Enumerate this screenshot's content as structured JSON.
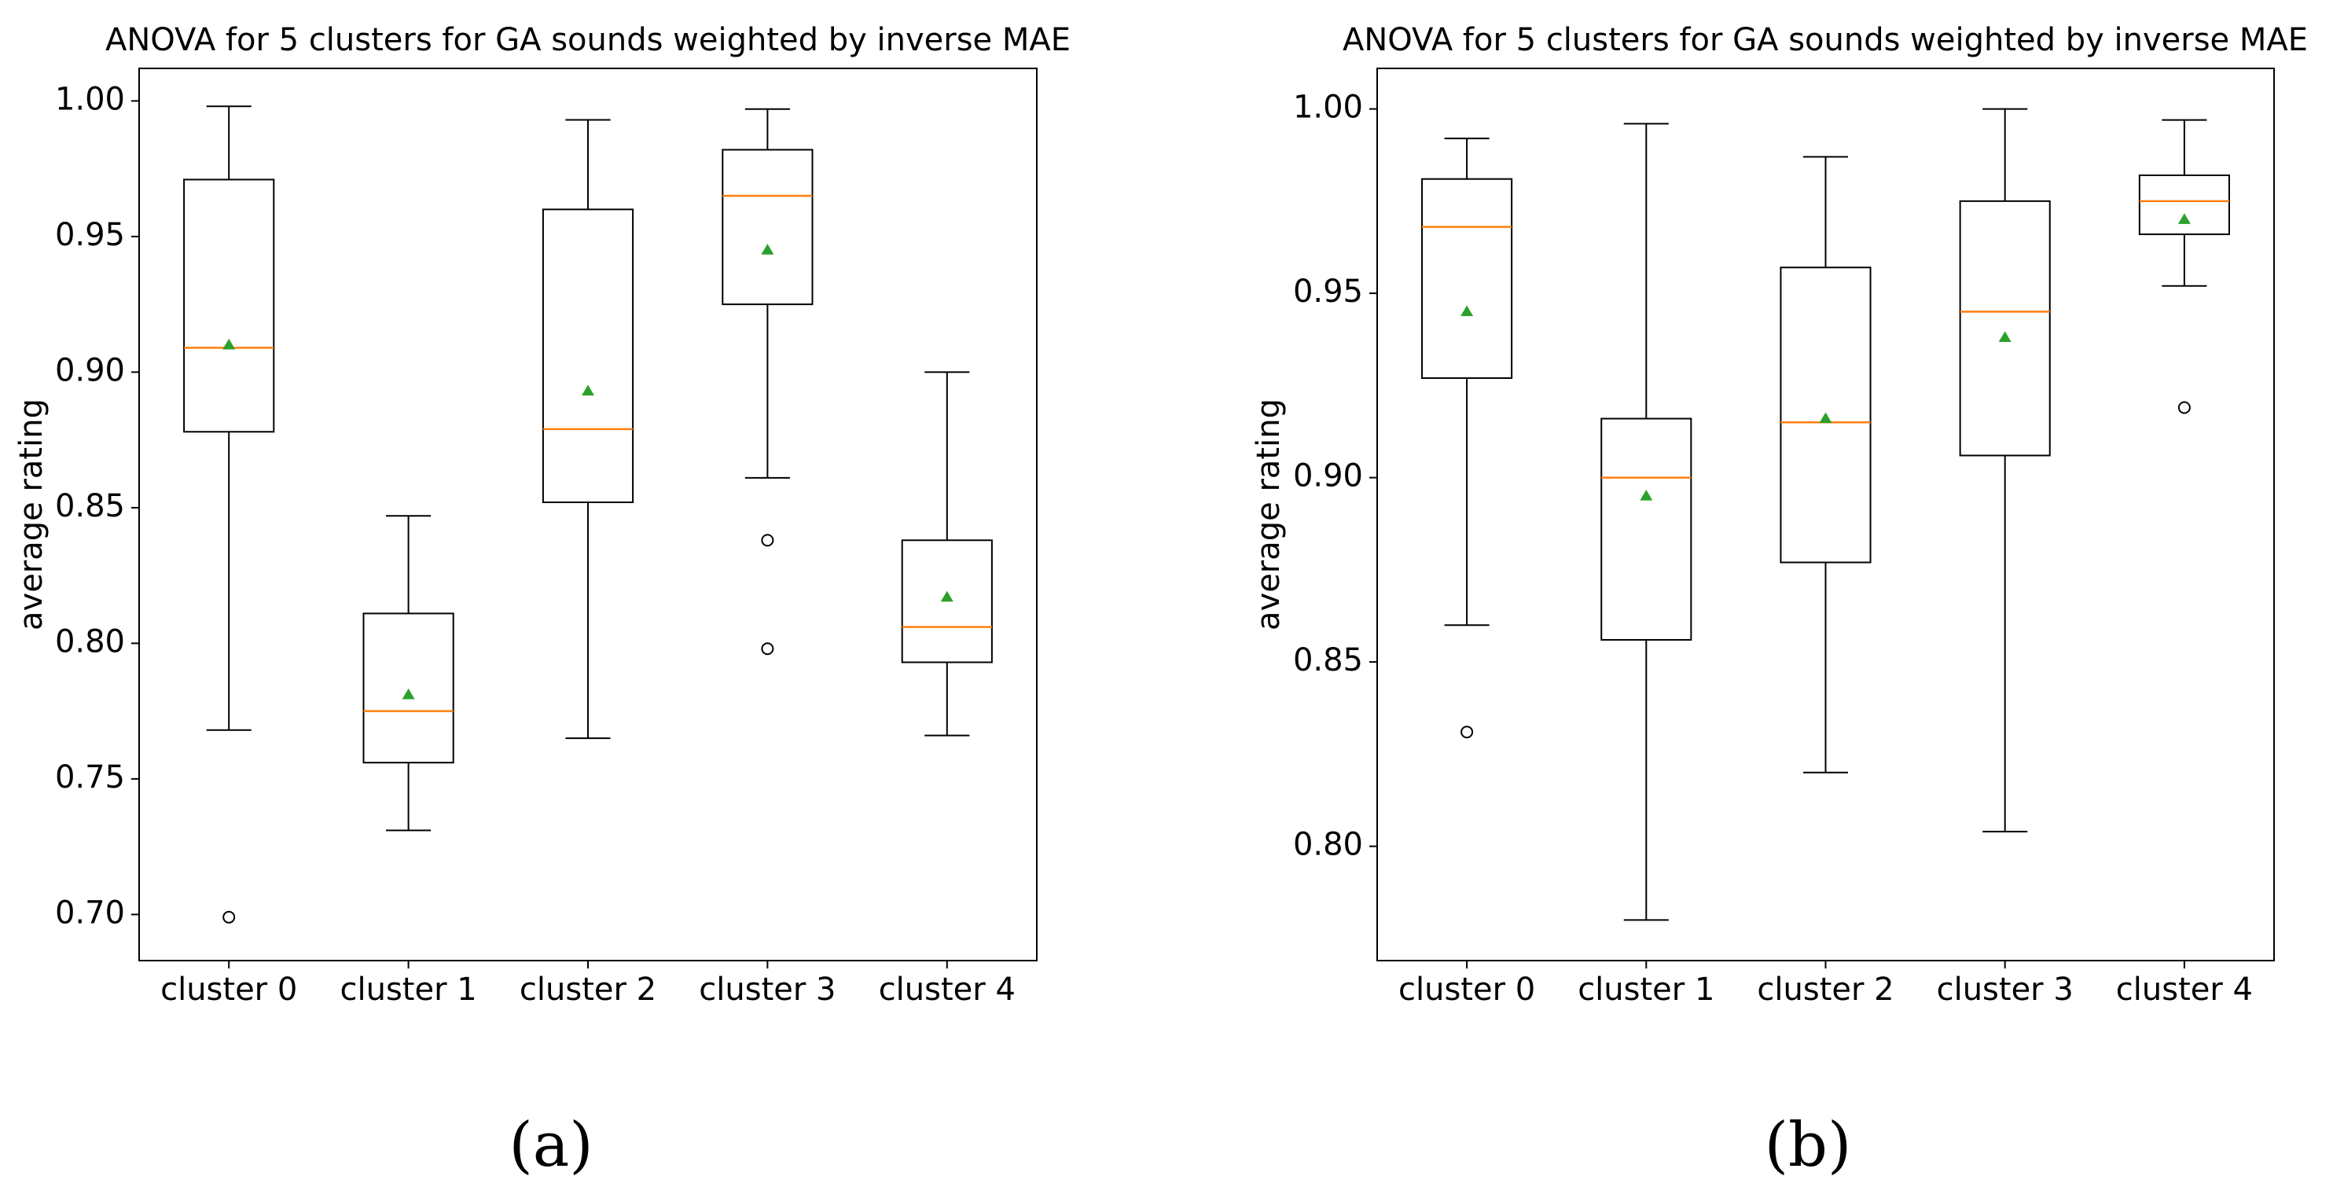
{
  "figure_labels": [
    "(a)",
    "(b)"
  ],
  "colors": {
    "box": "#000000",
    "median": "#ff7f0e",
    "mean": "#2ca02c",
    "flier": "#000000"
  },
  "chart_data": [
    {
      "type": "box",
      "panel": "(a)",
      "title": "ANOVA for 5 clusters for GA sounds weighted by inverse MAE",
      "xlabel": "",
      "ylabel": "average rating",
      "categories": [
        "cluster 0",
        "cluster 1",
        "cluster 2",
        "cluster 3",
        "cluster 4"
      ],
      "ylim": [
        0.683,
        1.012
      ],
      "yticks": [
        0.7,
        0.75,
        0.8,
        0.85,
        0.9,
        0.95,
        1.0
      ],
      "ytick_labels": [
        "0.70",
        "0.75",
        "0.80",
        "0.85",
        "0.90",
        "0.95",
        "1.00"
      ],
      "boxes": [
        {
          "whisker_low": 0.768,
          "q1": 0.878,
          "median": 0.909,
          "q3": 0.971,
          "whisker_high": 0.998,
          "mean": 0.91,
          "fliers": [
            0.699
          ]
        },
        {
          "whisker_low": 0.731,
          "q1": 0.756,
          "median": 0.775,
          "q3": 0.811,
          "whisker_high": 0.847,
          "mean": 0.781,
          "fliers": []
        },
        {
          "whisker_low": 0.765,
          "q1": 0.852,
          "median": 0.879,
          "q3": 0.96,
          "whisker_high": 0.993,
          "mean": 0.893,
          "fliers": []
        },
        {
          "whisker_low": 0.861,
          "q1": 0.925,
          "median": 0.965,
          "q3": 0.982,
          "whisker_high": 0.997,
          "mean": 0.945,
          "fliers": [
            0.838,
            0.798
          ]
        },
        {
          "whisker_low": 0.766,
          "q1": 0.793,
          "median": 0.806,
          "q3": 0.838,
          "whisker_high": 0.9,
          "mean": 0.817,
          "fliers": []
        }
      ]
    },
    {
      "type": "box",
      "panel": "(b)",
      "title": "ANOVA for 5 clusters for GA sounds weighted by inverse MAE",
      "xlabel": "",
      "ylabel": "average rating",
      "categories": [
        "cluster 0",
        "cluster 1",
        "cluster 2",
        "cluster 3",
        "cluster 4"
      ],
      "ylim": [
        0.769,
        1.011
      ],
      "yticks": [
        0.8,
        0.85,
        0.9,
        0.95,
        1.0
      ],
      "ytick_labels": [
        "0.80",
        "0.85",
        "0.90",
        "0.95",
        "1.00"
      ],
      "boxes": [
        {
          "whisker_low": 0.86,
          "q1": 0.927,
          "median": 0.968,
          "q3": 0.981,
          "whisker_high": 0.992,
          "mean": 0.945,
          "fliers": [
            0.831
          ]
        },
        {
          "whisker_low": 0.78,
          "q1": 0.856,
          "median": 0.9,
          "q3": 0.916,
          "whisker_high": 0.996,
          "mean": 0.895,
          "fliers": []
        },
        {
          "whisker_low": 0.82,
          "q1": 0.877,
          "median": 0.915,
          "q3": 0.957,
          "whisker_high": 0.987,
          "mean": 0.916,
          "fliers": []
        },
        {
          "whisker_low": 0.804,
          "q1": 0.906,
          "median": 0.945,
          "q3": 0.975,
          "whisker_high": 1.0,
          "mean": 0.938,
          "fliers": []
        },
        {
          "whisker_low": 0.952,
          "q1": 0.966,
          "median": 0.975,
          "q3": 0.982,
          "whisker_high": 0.997,
          "mean": 0.97,
          "fliers": [
            0.919
          ]
        }
      ]
    }
  ]
}
